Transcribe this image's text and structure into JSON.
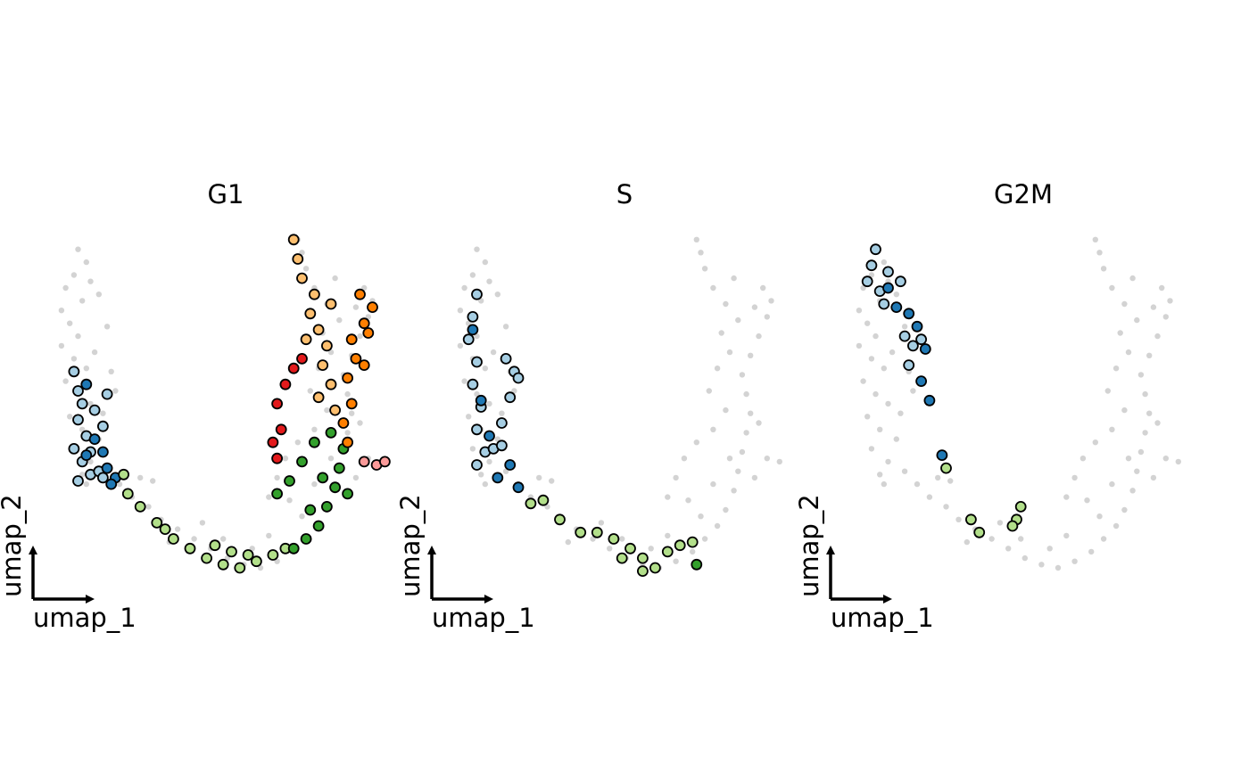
{
  "chart_data": [
    {
      "type": "scatter",
      "title": "G1",
      "xlabel": "umap_1",
      "ylabel": "umap_2",
      "background_color": "#d3d3d3",
      "highlight_outline": "#000000",
      "groups": [
        {
          "color": "#a6cee3",
          "points": [
            [
              -4.6,
              2.2
            ],
            [
              -4.5,
              1.6
            ],
            [
              -4.4,
              1.2
            ],
            [
              -4.5,
              0.7
            ],
            [
              -4.3,
              0.2
            ],
            [
              -4.6,
              -0.2
            ],
            [
              -4.4,
              -0.6
            ],
            [
              -4.2,
              -1.0
            ],
            [
              -4.5,
              -1.2
            ],
            [
              -4.0,
              -0.9
            ],
            [
              -3.9,
              0.5
            ],
            [
              -4.1,
              1.0
            ],
            [
              -3.8,
              1.5
            ],
            [
              -4.2,
              -0.3
            ],
            [
              -3.9,
              -1.1
            ]
          ]
        },
        {
          "color": "#1f78b4",
          "points": [
            [
              -4.3,
              1.8
            ],
            [
              -4.1,
              0.1
            ],
            [
              -4.3,
              -0.4
            ],
            [
              -3.8,
              -0.8
            ],
            [
              -3.6,
              -1.1
            ],
            [
              -3.7,
              -1.3
            ],
            [
              -3.9,
              -0.3
            ]
          ]
        },
        {
          "color": "#b2df8a",
          "points": [
            [
              -3.4,
              -1.0
            ],
            [
              -3.3,
              -1.6
            ],
            [
              -3.0,
              -2.0
            ],
            [
              -2.6,
              -2.5
            ],
            [
              -2.2,
              -3.0
            ],
            [
              -1.8,
              -3.3
            ],
            [
              -1.4,
              -3.6
            ],
            [
              -1.0,
              -3.8
            ],
            [
              -0.6,
              -3.9
            ],
            [
              -0.2,
              -3.7
            ],
            [
              0.2,
              -3.5
            ],
            [
              0.5,
              -3.3
            ],
            [
              -1.2,
              -3.2
            ],
            [
              -0.8,
              -3.4
            ],
            [
              -2.4,
              -2.7
            ],
            [
              -0.4,
              -3.5
            ]
          ]
        },
        {
          "color": "#33a02c",
          "points": [
            [
              0.7,
              -3.3
            ],
            [
              1.0,
              -3.0
            ],
            [
              1.3,
              -2.6
            ],
            [
              1.5,
              -2.0
            ],
            [
              1.7,
              -1.4
            ],
            [
              1.8,
              -0.8
            ],
            [
              1.9,
              -0.2
            ],
            [
              1.6,
              0.3
            ],
            [
              1.2,
              0.0
            ],
            [
              0.9,
              -0.6
            ],
            [
              0.6,
              -1.2
            ],
            [
              0.3,
              -1.6
            ],
            [
              1.4,
              -1.1
            ],
            [
              2.0,
              -1.6
            ],
            [
              1.1,
              -2.1
            ]
          ]
        },
        {
          "color": "#e31a1c",
          "points": [
            [
              0.5,
              1.8
            ],
            [
              0.3,
              1.2
            ],
            [
              0.4,
              0.4
            ],
            [
              0.2,
              0.0
            ],
            [
              0.3,
              -0.5
            ],
            [
              0.7,
              2.3
            ],
            [
              0.9,
              2.6
            ]
          ]
        },
        {
          "color": "#fdbf6f",
          "points": [
            [
              0.7,
              6.3
            ],
            [
              0.8,
              5.7
            ],
            [
              0.9,
              5.1
            ],
            [
              1.2,
              4.6
            ],
            [
              1.1,
              4.0
            ],
            [
              1.3,
              3.5
            ],
            [
              1.5,
              3.0
            ],
            [
              1.4,
              2.4
            ],
            [
              1.6,
              1.8
            ],
            [
              1.3,
              1.4
            ],
            [
              1.7,
              1.0
            ],
            [
              1.0,
              3.2
            ],
            [
              1.6,
              4.3
            ]
          ]
        },
        {
          "color": "#ff7f00",
          "points": [
            [
              2.3,
              4.6
            ],
            [
              2.6,
              4.2
            ],
            [
              2.4,
              3.7
            ],
            [
              2.1,
              3.2
            ],
            [
              2.2,
              2.6
            ],
            [
              2.0,
              2.0
            ],
            [
              2.4,
              2.4
            ],
            [
              2.1,
              1.2
            ],
            [
              1.9,
              0.6
            ],
            [
              2.0,
              0.0
            ],
            [
              2.5,
              3.4
            ]
          ]
        },
        {
          "color": "#fb9a99",
          "points": [
            [
              2.4,
              -0.6
            ],
            [
              2.7,
              -0.7
            ],
            [
              2.9,
              -0.6
            ]
          ]
        }
      ]
    },
    {
      "type": "scatter",
      "title": "S",
      "xlabel": "umap_1",
      "ylabel": "umap_2",
      "background_color": "#d3d3d3",
      "highlight_outline": "#000000",
      "groups": [
        {
          "color": "#a6cee3",
          "points": [
            [
              -4.5,
              4.6
            ],
            [
              -4.6,
              3.9
            ],
            [
              -4.7,
              3.2
            ],
            [
              -4.5,
              2.5
            ],
            [
              -4.6,
              1.8
            ],
            [
              -4.4,
              1.1
            ],
            [
              -4.5,
              0.4
            ],
            [
              -4.3,
              -0.3
            ],
            [
              -4.5,
              -0.7
            ],
            [
              -4.1,
              -0.2
            ],
            [
              -3.9,
              0.6
            ],
            [
              -3.7,
              1.4
            ],
            [
              -3.6,
              2.2
            ],
            [
              -3.8,
              2.6
            ],
            [
              -3.5,
              2.0
            ],
            [
              -3.9,
              -0.1
            ]
          ]
        },
        {
          "color": "#1f78b4",
          "points": [
            [
              -4.6,
              3.5
            ],
            [
              -4.4,
              1.3
            ],
            [
              -4.2,
              0.2
            ],
            [
              -3.7,
              -0.7
            ],
            [
              -4.0,
              -1.1
            ],
            [
              -3.5,
              -1.4
            ]
          ]
        },
        {
          "color": "#b2df8a",
          "points": [
            [
              -3.2,
              -1.9
            ],
            [
              -2.9,
              -1.8
            ],
            [
              -2.5,
              -2.4
            ],
            [
              -2.0,
              -2.8
            ],
            [
              -1.6,
              -2.8
            ],
            [
              -1.2,
              -3.0
            ],
            [
              -0.8,
              -3.3
            ],
            [
              -0.5,
              -3.6
            ],
            [
              -0.2,
              -3.9
            ],
            [
              0.1,
              -3.4
            ],
            [
              0.4,
              -3.2
            ],
            [
              0.7,
              -3.1
            ],
            [
              -1.0,
              -3.6
            ],
            [
              -0.5,
              -4.0
            ]
          ]
        },
        {
          "color": "#33a02c",
          "points": [
            [
              0.8,
              -3.8
            ]
          ]
        }
      ]
    },
    {
      "type": "scatter",
      "title": "G2M",
      "xlabel": "umap_1",
      "ylabel": "umap_2",
      "background_color": "#d3d3d3",
      "highlight_outline": "#000000",
      "groups": [
        {
          "color": "#a6cee3",
          "points": [
            [
              -4.5,
              6.0
            ],
            [
              -4.6,
              5.5
            ],
            [
              -4.7,
              5.0
            ],
            [
              -4.4,
              4.7
            ],
            [
              -4.2,
              5.3
            ],
            [
              -3.9,
              5.0
            ],
            [
              -4.3,
              4.3
            ],
            [
              -3.6,
              3.0
            ],
            [
              -3.8,
              3.3
            ],
            [
              -3.4,
              3.2
            ],
            [
              -3.7,
              2.4
            ]
          ]
        },
        {
          "color": "#1f78b4",
          "points": [
            [
              -4.2,
              4.8
            ],
            [
              -4.0,
              4.2
            ],
            [
              -3.7,
              4.0
            ],
            [
              -3.5,
              3.6
            ],
            [
              -3.3,
              2.9
            ],
            [
              -3.4,
              1.9
            ],
            [
              -3.2,
              1.3
            ],
            [
              -2.9,
              -0.4
            ]
          ]
        },
        {
          "color": "#b2df8a",
          "points": [
            [
              -2.8,
              -0.8
            ],
            [
              -2.2,
              -2.4
            ],
            [
              -2.0,
              -2.8
            ],
            [
              -1.1,
              -2.4
            ],
            [
              -1.0,
              -2.0
            ],
            [
              -1.2,
              -2.6
            ]
          ]
        }
      ]
    }
  ],
  "background_points": [
    [
      -4.5,
      6.0
    ],
    [
      -4.3,
      5.6
    ],
    [
      -4.6,
      5.2
    ],
    [
      -4.8,
      4.8
    ],
    [
      -4.4,
      4.4
    ],
    [
      -4.9,
      4.1
    ],
    [
      -4.7,
      3.7
    ],
    [
      -4.5,
      3.3
    ],
    [
      -4.9,
      3.0
    ],
    [
      -4.6,
      2.6
    ],
    [
      -4.3,
      2.3
    ],
    [
      -4.8,
      1.9
    ],
    [
      -4.5,
      1.5
    ],
    [
      -4.2,
      1.2
    ],
    [
      -4.7,
      0.8
    ],
    [
      -4.4,
      0.4
    ],
    [
      -4.0,
      0.1
    ],
    [
      -4.6,
      -0.2
    ],
    [
      -4.2,
      -0.6
    ],
    [
      -3.8,
      -0.9
    ],
    [
      -4.4,
      -1.0
    ],
    [
      -3.5,
      -1.3
    ],
    [
      -3.9,
      0.9
    ],
    [
      -3.6,
      1.6
    ],
    [
      -4.1,
      2.8
    ],
    [
      -3.8,
      3.6
    ],
    [
      -4.2,
      5.0
    ],
    [
      -4.0,
      4.6
    ],
    [
      -3.7,
      2.2
    ],
    [
      -4.3,
      -1.3
    ],
    [
      -3.2,
      -1.7
    ],
    [
      -2.8,
      -2.0
    ],
    [
      -2.5,
      -2.4
    ],
    [
      -2.1,
      -2.7
    ],
    [
      -1.7,
      -3.0
    ],
    [
      -1.3,
      -3.3
    ],
    [
      -0.9,
      -3.6
    ],
    [
      -0.5,
      -3.8
    ],
    [
      -0.1,
      -3.9
    ],
    [
      0.3,
      -3.7
    ],
    [
      0.7,
      -3.4
    ],
    [
      1.0,
      -3.0
    ],
    [
      1.3,
      -2.6
    ],
    [
      1.5,
      -2.1
    ],
    [
      1.7,
      -1.5
    ],
    [
      1.8,
      -0.9
    ],
    [
      1.9,
      -0.3
    ],
    [
      2.0,
      0.3
    ],
    [
      2.1,
      0.9
    ],
    [
      2.0,
      1.5
    ],
    [
      1.9,
      2.1
    ],
    [
      2.1,
      2.7
    ],
    [
      2.3,
      3.3
    ],
    [
      2.5,
      3.9
    ],
    [
      2.6,
      4.4
    ],
    [
      2.4,
      4.8
    ],
    [
      2.2,
      4.2
    ],
    [
      1.8,
      3.8
    ],
    [
      1.5,
      4.3
    ],
    [
      1.2,
      4.8
    ],
    [
      1.0,
      5.4
    ],
    [
      0.9,
      5.9
    ],
    [
      0.8,
      6.3
    ],
    [
      1.4,
      3.4
    ],
    [
      1.6,
      2.8
    ],
    [
      1.3,
      2.3
    ],
    [
      1.1,
      1.6
    ],
    [
      1.5,
      1.0
    ],
    [
      1.2,
      0.4
    ],
    [
      0.8,
      0.0
    ],
    [
      0.5,
      -0.5
    ],
    [
      0.3,
      -1.1
    ],
    [
      0.6,
      -1.8
    ],
    [
      0.9,
      -2.3
    ],
    [
      1.2,
      -1.3
    ],
    [
      1.6,
      -0.5
    ],
    [
      2.2,
      -1.1
    ],
    [
      2.5,
      -0.5
    ],
    [
      2.8,
      -0.6
    ],
    [
      -2.3,
      -3.1
    ],
    [
      -1.0,
      -3.0
    ],
    [
      -0.3,
      -3.3
    ],
    [
      0.1,
      -2.9
    ],
    [
      -1.5,
      -2.5
    ],
    [
      -2.7,
      -1.2
    ],
    [
      0.1,
      -1.7
    ],
    [
      2.3,
      0.6
    ],
    [
      1.7,
      5.1
    ],
    [
      -3.0,
      -1.1
    ]
  ],
  "legend_colors": [
    "#a6cee3",
    "#1f78b4",
    "#b2df8a",
    "#33a02c",
    "#fb9a99",
    "#e31a1c",
    "#fdbf6f",
    "#ff7f00"
  ]
}
